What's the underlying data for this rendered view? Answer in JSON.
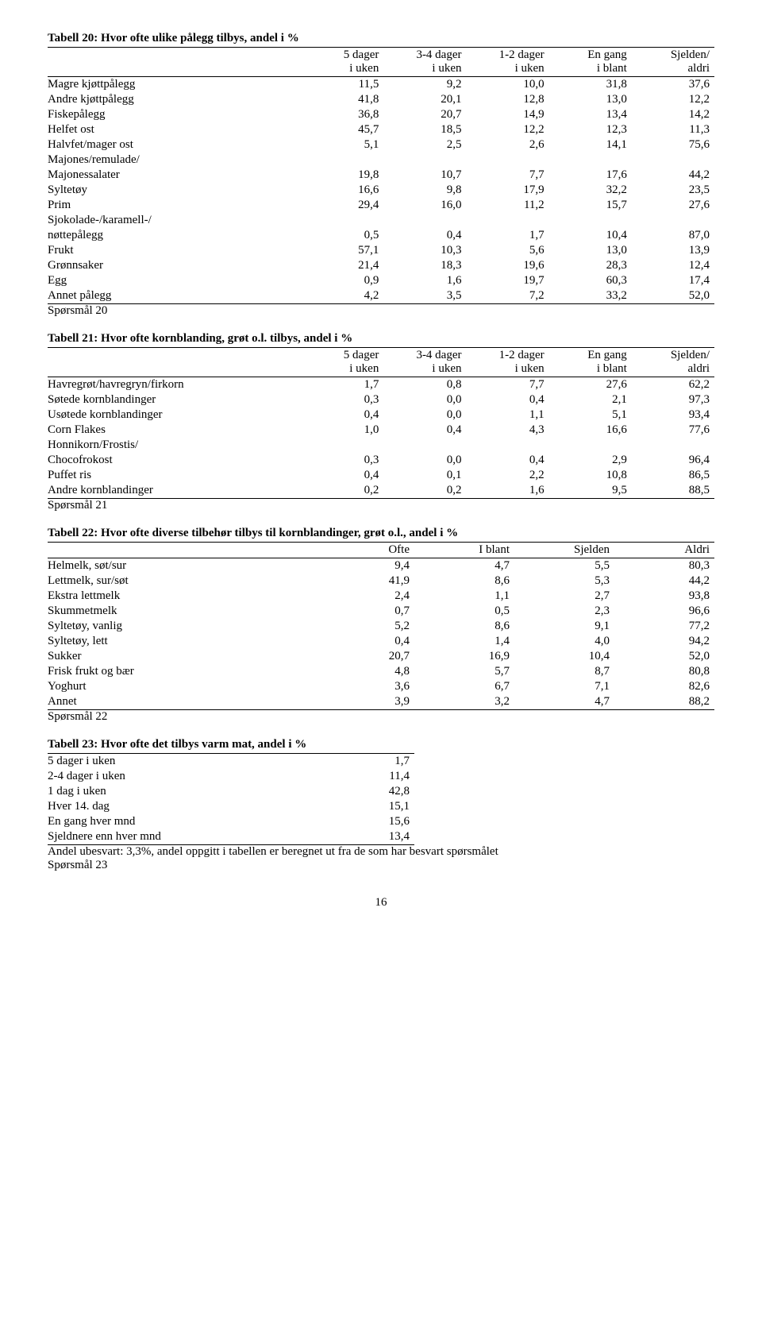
{
  "table20": {
    "title": "Tabell 20: Hvor ofte ulike pålegg tilbys, andel i %",
    "headers": [
      {
        "l1": "5 dager",
        "l2": "i uken"
      },
      {
        "l1": "3-4 dager",
        "l2": "i uken"
      },
      {
        "l1": "1-2 dager",
        "l2": "i uken"
      },
      {
        "l1": "En gang",
        "l2": "i blant"
      },
      {
        "l1": "Sjelden/",
        "l2": "aldri"
      }
    ],
    "rows": [
      {
        "label": "Magre kjøttpålegg",
        "v": [
          "11,5",
          "9,2",
          "10,0",
          "31,8",
          "37,6"
        ]
      },
      {
        "label": "Andre kjøttpålegg",
        "v": [
          "41,8",
          "20,1",
          "12,8",
          "13,0",
          "12,2"
        ]
      },
      {
        "label": "Fiskepålegg",
        "v": [
          "36,8",
          "20,7",
          "14,9",
          "13,4",
          "14,2"
        ]
      },
      {
        "label": "Helfet ost",
        "v": [
          "45,7",
          "18,5",
          "12,2",
          "12,3",
          "11,3"
        ]
      },
      {
        "label": "Halvfet/mager ost",
        "v": [
          "5,1",
          "2,5",
          "2,6",
          "14,1",
          "75,6"
        ]
      },
      {
        "label": "Majones/remulade/",
        "v": [
          "",
          "",
          "",
          "",
          ""
        ]
      },
      {
        "label": "Majonessalater",
        "v": [
          "19,8",
          "10,7",
          "7,7",
          "17,6",
          "44,2"
        ]
      },
      {
        "label": "Syltetøy",
        "v": [
          "16,6",
          "9,8",
          "17,9",
          "32,2",
          "23,5"
        ]
      },
      {
        "label": "Prim",
        "v": [
          "29,4",
          "16,0",
          "11,2",
          "15,7",
          "27,6"
        ]
      },
      {
        "label": "Sjokolade-/karamell-/",
        "v": [
          "",
          "",
          "",
          "",
          ""
        ]
      },
      {
        "label": "nøttepålegg",
        "v": [
          "0,5",
          "0,4",
          "1,7",
          "10,4",
          "87,0"
        ]
      },
      {
        "label": "Frukt",
        "v": [
          "57,1",
          "10,3",
          "5,6",
          "13,0",
          "13,9"
        ]
      },
      {
        "label": "Grønnsaker",
        "v": [
          "21,4",
          "18,3",
          "19,6",
          "28,3",
          "12,4"
        ]
      },
      {
        "label": "Egg",
        "v": [
          "0,9",
          "1,6",
          "19,7",
          "60,3",
          "17,4"
        ]
      },
      {
        "label": "Annet pålegg",
        "v": [
          "4,2",
          "3,5",
          "7,2",
          "33,2",
          "52,0"
        ]
      }
    ],
    "footnote": "Spørsmål 20"
  },
  "table21": {
    "title": "Tabell 21: Hvor ofte kornblanding, grøt o.l. tilbys, andel i %",
    "headers": [
      {
        "l1": "5 dager",
        "l2": "i uken"
      },
      {
        "l1": "3-4 dager",
        "l2": "i uken"
      },
      {
        "l1": "1-2 dager",
        "l2": "i uken"
      },
      {
        "l1": "En gang",
        "l2": "i blant"
      },
      {
        "l1": "Sjelden/",
        "l2": "aldri"
      }
    ],
    "rows": [
      {
        "label": "Havregrøt/havregryn/firkorn",
        "v": [
          "1,7",
          "0,8",
          "7,7",
          "27,6",
          "62,2"
        ]
      },
      {
        "label": "Søtede kornblandinger",
        "v": [
          "0,3",
          "0,0",
          "0,4",
          "2,1",
          "97,3"
        ]
      },
      {
        "label": "Usøtede kornblandinger",
        "v": [
          "0,4",
          "0,0",
          "1,1",
          "5,1",
          "93,4"
        ]
      },
      {
        "label": "Corn Flakes",
        "v": [
          "1,0",
          "0,4",
          "4,3",
          "16,6",
          "77,6"
        ]
      },
      {
        "label": "Honnikorn/Frostis/",
        "v": [
          "",
          "",
          "",
          "",
          ""
        ]
      },
      {
        "label": "Chocofrokost",
        "v": [
          "0,3",
          "0,0",
          "0,4",
          "2,9",
          "96,4"
        ]
      },
      {
        "label": "Puffet ris",
        "v": [
          "0,4",
          "0,1",
          "2,2",
          "10,8",
          "86,5"
        ]
      },
      {
        "label": "Andre kornblandinger",
        "v": [
          "0,2",
          "0,2",
          "1,6",
          "9,5",
          "88,5"
        ]
      }
    ],
    "footnote": "Spørsmål 21"
  },
  "table22": {
    "title": "Tabell 22: Hvor ofte diverse tilbehør tilbys til kornblandinger, grøt o.l., andel i %",
    "headers": [
      "Ofte",
      "I blant",
      "Sjelden",
      "Aldri"
    ],
    "rows": [
      {
        "label": "Helmelk, søt/sur",
        "v": [
          "9,4",
          "4,7",
          "5,5",
          "80,3"
        ]
      },
      {
        "label": "Lettmelk, sur/søt",
        "v": [
          "41,9",
          "8,6",
          "5,3",
          "44,2"
        ]
      },
      {
        "label": "Ekstra lettmelk",
        "v": [
          "2,4",
          "1,1",
          "2,7",
          "93,8"
        ]
      },
      {
        "label": "Skummetmelk",
        "v": [
          "0,7",
          "0,5",
          "2,3",
          "96,6"
        ]
      },
      {
        "label": "Syltetøy, vanlig",
        "v": [
          "5,2",
          "8,6",
          "9,1",
          "77,2"
        ]
      },
      {
        "label": "Syltetøy, lett",
        "v": [
          "0,4",
          "1,4",
          "4,0",
          "94,2"
        ]
      },
      {
        "label": "Sukker",
        "v": [
          "20,7",
          "16,9",
          "10,4",
          "52,0"
        ]
      },
      {
        "label": "Frisk frukt og bær",
        "v": [
          "4,8",
          "5,7",
          "8,7",
          "80,8"
        ]
      },
      {
        "label": "Yoghurt",
        "v": [
          "3,6",
          "6,7",
          "7,1",
          "82,6"
        ]
      },
      {
        "label": "Annet",
        "v": [
          "3,9",
          "3,2",
          "4,7",
          "88,2"
        ]
      }
    ],
    "footnote": "Spørsmål 22"
  },
  "table23": {
    "title": "Tabell 23: Hvor ofte det tilbys varm mat, andel i %",
    "rows": [
      {
        "label": "5 dager i uken",
        "v": "1,7"
      },
      {
        "label": "2-4 dager i uken",
        "v": "11,4"
      },
      {
        "label": "1 dag i uken",
        "v": "42,8"
      },
      {
        "label": "Hver 14. dag",
        "v": "15,1"
      },
      {
        "label": "En gang hver mnd",
        "v": "15,6"
      },
      {
        "label": "Sjeldnere enn hver mnd",
        "v": "13,4"
      }
    ],
    "note": "Andel ubesvart: 3,3%, andel oppgitt i tabellen er beregnet ut fra de som har besvart spørsmålet",
    "footnote": "Spørsmål 23"
  },
  "pagenum": "16"
}
